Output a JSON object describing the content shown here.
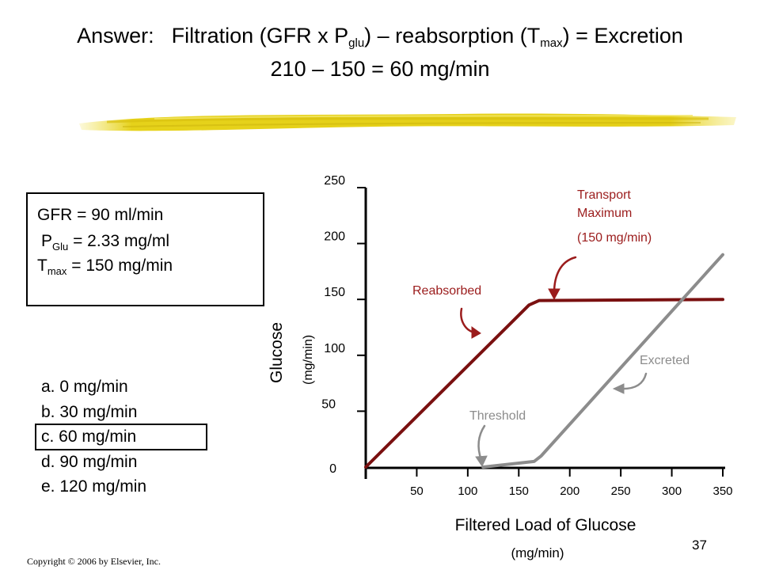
{
  "slide": {
    "title": {
      "prefix": "Answer:",
      "part1": "Filtration (GFR x P",
      "sub1": "glu",
      "part2": ")  – reabsorption  (T",
      "sub2": "max",
      "part3": ") = Excretion",
      "line2": "210 – 150 = 60 mg/min"
    },
    "given": {
      "gfr": "GFR = 90 ml/min",
      "pglu_main": "P",
      "pglu_sub": "Glu",
      "pglu_rest": " = 2.33 mg/ml",
      "tmax_main": "T",
      "tmax_sub": "max",
      "tmax_rest": " = 150 mg/min"
    },
    "choices": [
      {
        "label": "a. 0 mg/min",
        "selected": false
      },
      {
        "label": "b. 30 mg/min",
        "selected": false
      },
      {
        "label": "c. 60 mg/min",
        "selected": true
      },
      {
        "label": "d. 90 mg/min",
        "selected": false
      },
      {
        "label": "e. 120 mg/min",
        "selected": false
      }
    ],
    "footer": "Copyright © 2006 by Elsevier, Inc.",
    "page_number": "37",
    "colors": {
      "reabsorbed": "#7a1010",
      "excreted": "#8c8c8c",
      "annotation_red": "#9b1c1c",
      "annotation_gray": "#8c8c8c",
      "brush": "#e6d21a"
    }
  },
  "chart_data": {
    "type": "line",
    "ylabel": "Glucose",
    "ylabel_unit": "(mg/min)",
    "xlabel": "Filtered Load of Glucose",
    "xlabel_unit": "(mg/min)",
    "y_ticks": [
      "0",
      "50",
      "100",
      "150",
      "200",
      "250"
    ],
    "x_ticks": [
      "50",
      "100",
      "150",
      "200",
      "250",
      "300",
      "350"
    ],
    "xlim": [
      0,
      350
    ],
    "ylim": [
      0,
      250
    ],
    "series": [
      {
        "name": "Reabsorbed",
        "color": "#7a1010",
        "x": [
          0,
          160,
          170,
          350
        ],
        "y": [
          0,
          145,
          149,
          150
        ]
      },
      {
        "name": "Excreted",
        "color": "#8c8c8c",
        "x": [
          115,
          165,
          172,
          350
        ],
        "y": [
          0,
          5,
          10,
          190
        ]
      }
    ],
    "annotations": [
      {
        "id": "tmax-title",
        "text": "Transport",
        "color": "#9b1c1c"
      },
      {
        "id": "tmax-title2",
        "text": "Maximum",
        "color": "#9b1c1c"
      },
      {
        "id": "tmax-value",
        "text": "(150 mg/min)",
        "color": "#9b1c1c"
      },
      {
        "id": "reabsorbed",
        "text": "Reabsorbed",
        "color": "#9b1c1c"
      },
      {
        "id": "excreted",
        "text": "Excreted",
        "color": "#8c8c8c"
      },
      {
        "id": "threshold",
        "text": "Threshold",
        "color": "#8c8c8c"
      }
    ]
  }
}
